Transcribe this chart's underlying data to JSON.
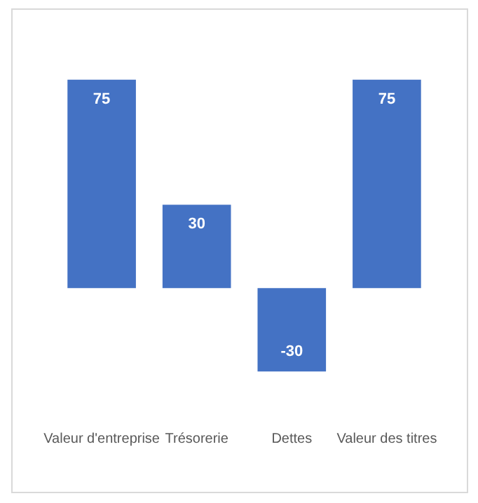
{
  "chart_data": {
    "type": "bar",
    "categories": [
      "Valeur d'entreprise",
      "Trésorerie",
      "Dettes",
      "Valeur des titres"
    ],
    "values": [
      75,
      30,
      -30,
      75
    ],
    "color": "#4472c4",
    "relative": false,
    "data_labels": true,
    "grid": false,
    "legend": false
  }
}
